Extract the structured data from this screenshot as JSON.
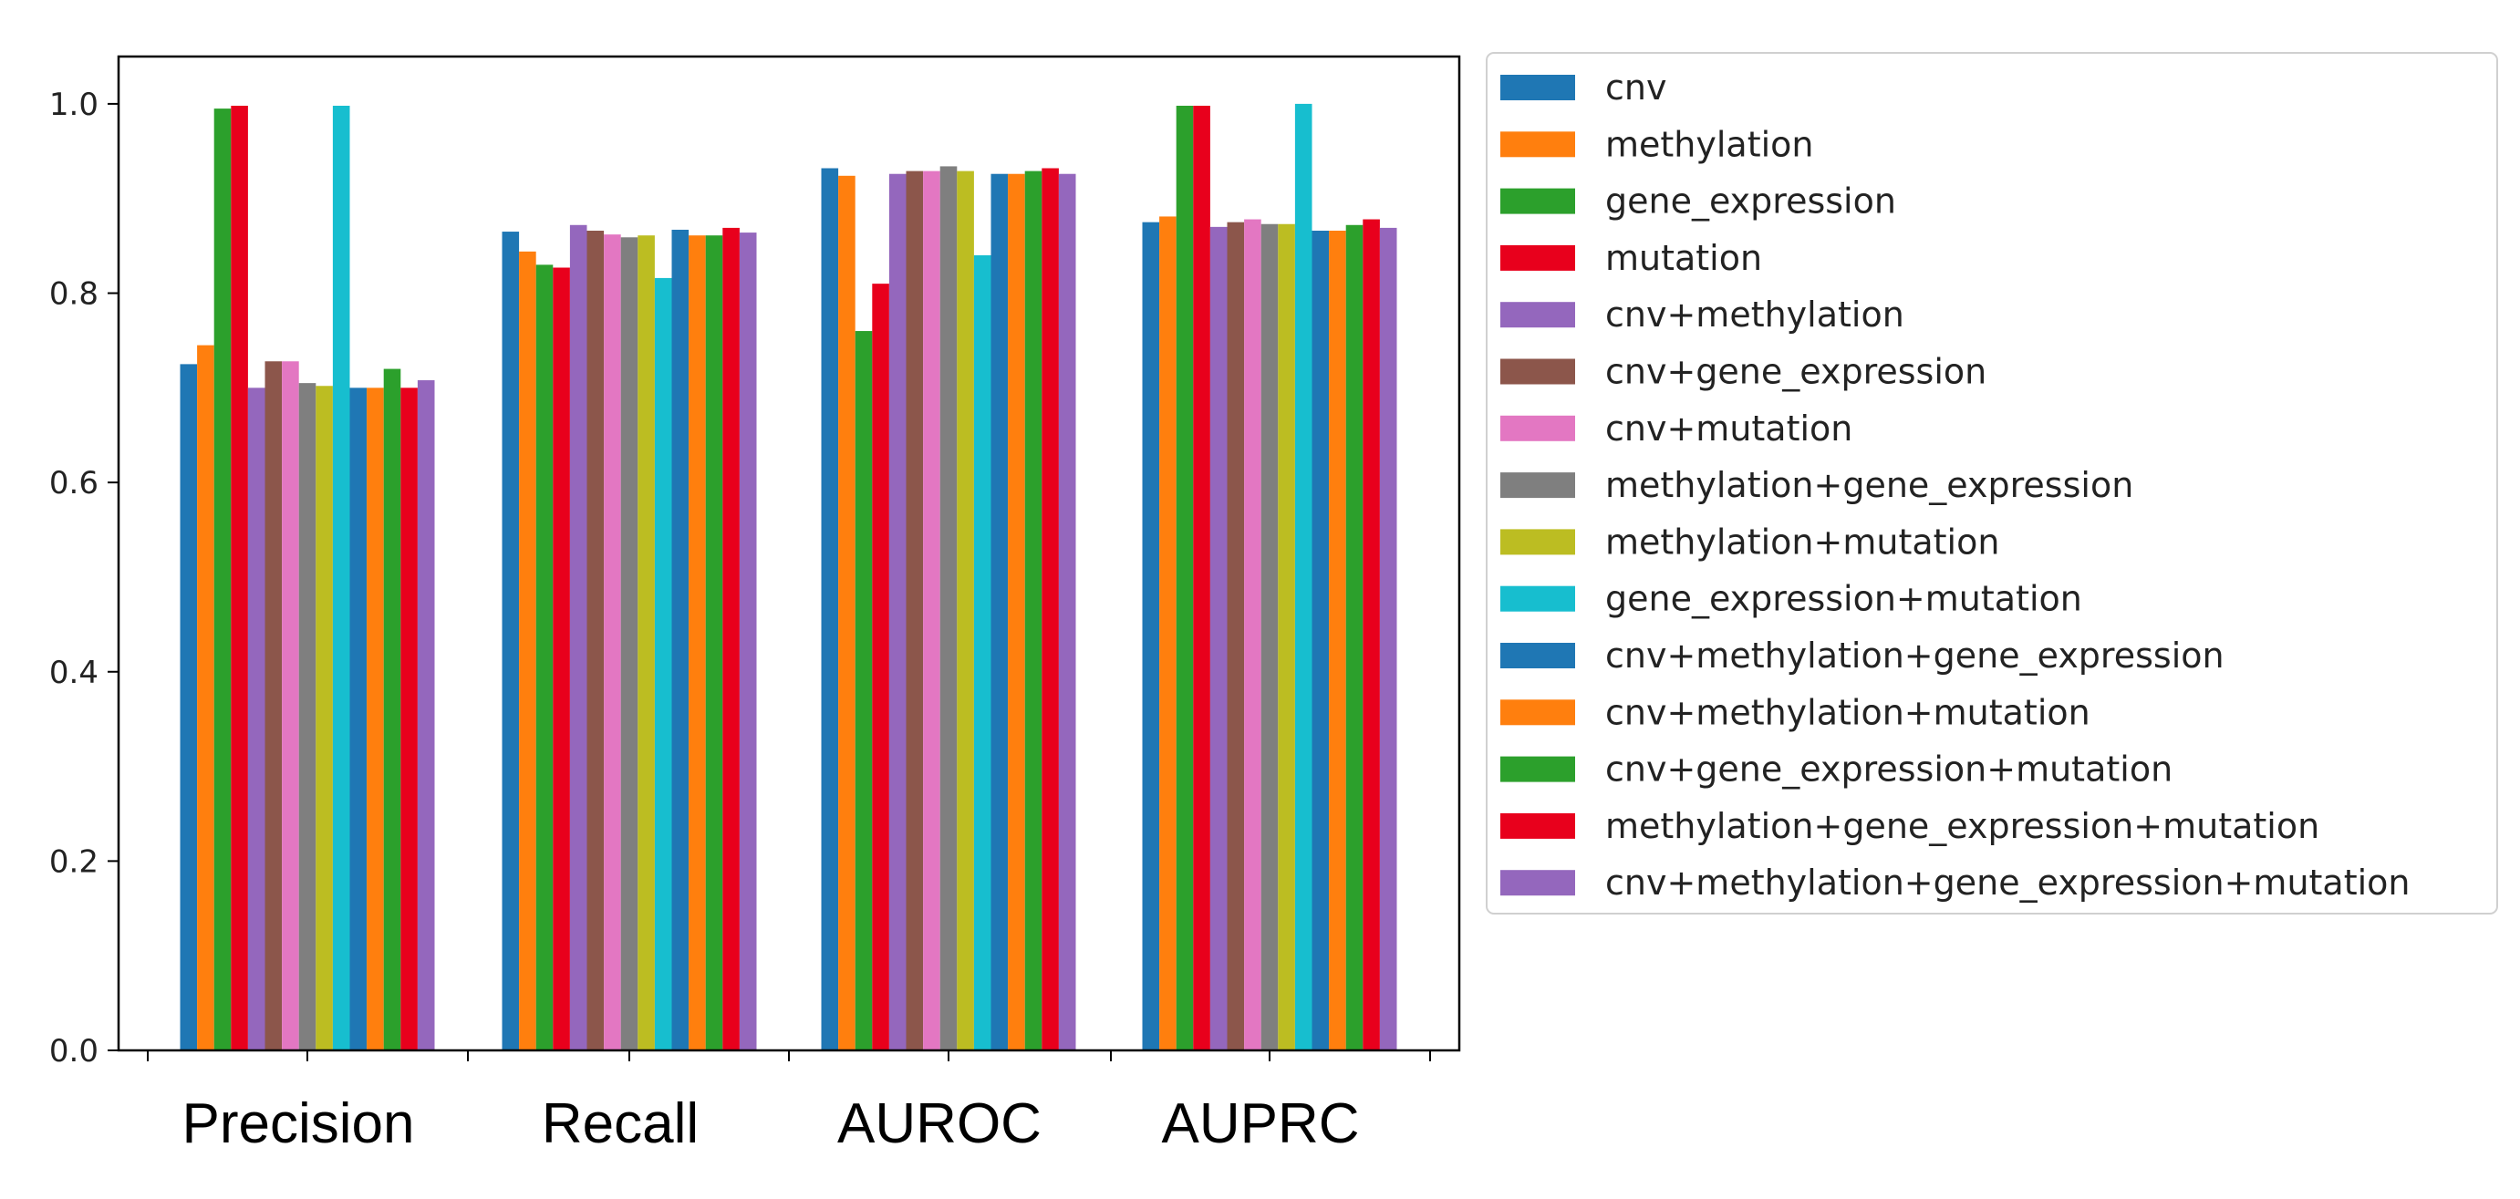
{
  "chart_data": {
    "type": "bar",
    "categories": [
      "Precision",
      "Recall",
      "AUROC",
      "AUPRC"
    ],
    "ylim": [
      0,
      1.05
    ],
    "yticks": [
      "0.0",
      "0.2",
      "0.4",
      "0.6",
      "0.8",
      "1.0"
    ],
    "grid": false,
    "legend_placement": "outside-right",
    "series": [
      {
        "name": "cnv",
        "color": "#1f77b4",
        "values": [
          0.725,
          0.865,
          0.932,
          0.875
        ]
      },
      {
        "name": "methylation",
        "color": "#ff7f0e",
        "values": [
          0.745,
          0.844,
          0.924,
          0.881
        ]
      },
      {
        "name": "gene_expression",
        "color": "#2ca02c",
        "values": [
          0.995,
          0.83,
          0.76,
          0.998
        ]
      },
      {
        "name": "mutation",
        "color": "#e8001c",
        "values": [
          0.998,
          0.827,
          0.81,
          0.998
        ]
      },
      {
        "name": "cnv+methylation",
        "color": "#9467bd",
        "values": [
          0.7,
          0.872,
          0.926,
          0.87
        ]
      },
      {
        "name": "cnv+gene_expression",
        "color": "#8c564b",
        "values": [
          0.728,
          0.866,
          0.929,
          0.875
        ]
      },
      {
        "name": "cnv+mutation",
        "color": "#e377c2",
        "values": [
          0.728,
          0.862,
          0.929,
          0.878
        ]
      },
      {
        "name": "methylation+gene_expression",
        "color": "#7f7f7f",
        "values": [
          0.705,
          0.859,
          0.934,
          0.873
        ]
      },
      {
        "name": "methylation+mutation",
        "color": "#bcbd22",
        "values": [
          0.702,
          0.861,
          0.929,
          0.873
        ]
      },
      {
        "name": "gene_expression+mutation",
        "color": "#17becf",
        "values": [
          0.998,
          0.816,
          0.84,
          1.0
        ]
      },
      {
        "name": "cnv+methylation+gene_expression",
        "color": "#1f77b4",
        "values": [
          0.7,
          0.867,
          0.926,
          0.866
        ]
      },
      {
        "name": "cnv+methylation+mutation",
        "color": "#ff7f0e",
        "values": [
          0.7,
          0.861,
          0.926,
          0.866
        ]
      },
      {
        "name": "cnv+gene_expression+mutation",
        "color": "#2ca02c",
        "values": [
          0.72,
          0.861,
          0.929,
          0.872
        ]
      },
      {
        "name": "methylation+gene_expression+mutation",
        "color": "#e8001c",
        "values": [
          0.7,
          0.869,
          0.932,
          0.878
        ]
      },
      {
        "name": "cnv+methylation+gene_expression+mutation",
        "color": "#9467bd",
        "values": [
          0.708,
          0.864,
          0.926,
          0.869
        ]
      }
    ]
  }
}
